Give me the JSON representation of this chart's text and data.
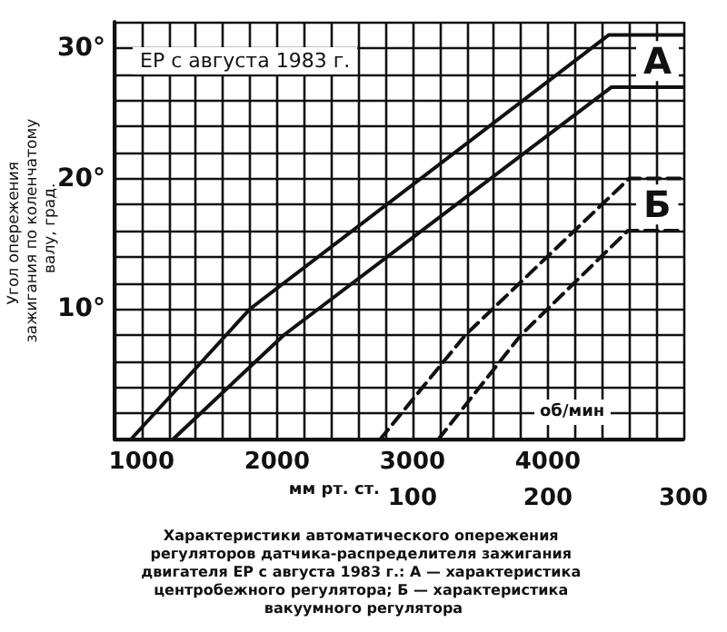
{
  "chart_data": {
    "type": "line",
    "title": "Характеристики автоматического опережения регуляторов датчика-распределителя зажигания двигателя ЕР с августа 1983 г.: А — характеристика центробежного регулятора; Б — характеристика вакуумного регулятора",
    "ylabel": "Угол опережения зажигания по коленчатому валу, град.",
    "xlabel": "об/мин",
    "x2label": "мм рт. ст.",
    "annotations": [
      "ЕР с августа 1983 г."
    ],
    "xlim": [
      800,
      5000
    ],
    "xticks": [
      {
        "value": 800,
        "label": null
      },
      1000,
      {
        "value": 1200,
        "label": null
      },
      {
        "value": 1400,
        "label": null
      },
      {
        "value": 1600,
        "label": null
      },
      {
        "value": 1800,
        "label": null
      },
      2000,
      {
        "value": 2200,
        "label": null
      },
      {
        "value": 2400,
        "label": null
      },
      {
        "value": 2600,
        "label": null
      },
      {
        "value": 2800,
        "label": null
      },
      3000,
      {
        "value": 3200,
        "label": null
      },
      {
        "value": 3400,
        "label": null
      },
      {
        "value": 3600,
        "label": null
      },
      {
        "value": 3800,
        "label": null
      },
      4000,
      {
        "value": 4200,
        "label": null
      },
      {
        "value": 4400,
        "label": null
      },
      {
        "value": 4600,
        "label": null
      },
      {
        "value": 4800,
        "label": null
      },
      {
        "value": 5000,
        "label": null
      }
    ],
    "x2lim": [
      -120,
      300
    ],
    "x2ticks": [
      100,
      200,
      300
    ],
    "ylim": [
      0,
      32
    ],
    "yticks": [
      {
        "value": 0,
        "label": null
      },
      {
        "value": 2,
        "label": null
      },
      {
        "value": 4,
        "label": null
      },
      {
        "value": 6,
        "label": null
      },
      {
        "value": 8,
        "label": null
      },
      {
        "value": 10,
        "label": "10°"
      },
      {
        "value": 12,
        "label": null
      },
      {
        "value": 14,
        "label": null
      },
      {
        "value": 16,
        "label": null
      },
      {
        "value": 18,
        "label": null
      },
      {
        "value": 20,
        "label": "20°"
      },
      {
        "value": 22,
        "label": null
      },
      {
        "value": 24,
        "label": null
      },
      {
        "value": 26,
        "label": null
      },
      {
        "value": 28,
        "label": null
      },
      {
        "value": 30,
        "label": "30°"
      },
      {
        "value": 32,
        "label": null
      }
    ],
    "grid": true,
    "legend": false,
    "marker": "none",
    "line_style": "solid",
    "series": [
      {
        "name": "А",
        "color": "#111111",
        "x": [
          920,
          1800,
          4450,
          5000
        ],
        "values": [
          0,
          10,
          31,
          31
        ]
      },
      {
        "color": "#111111",
        "x": [
          1230,
          2050,
          4470,
          5000
        ],
        "values": [
          0,
          8,
          27,
          27
        ]
      },
      {
        "name": "Б",
        "color": "#111111",
        "axis": "x2",
        "line_style": "dashed",
        "x": [
          76,
          139,
          260,
          300
        ],
        "values": [
          0,
          8,
          20,
          20
        ]
      },
      {
        "color": "#111111",
        "axis": "x2",
        "line_style": "dashed",
        "x": [
          119,
          180,
          259,
          300
        ],
        "values": [
          0,
          8,
          16,
          16
        ]
      }
    ]
  }
}
